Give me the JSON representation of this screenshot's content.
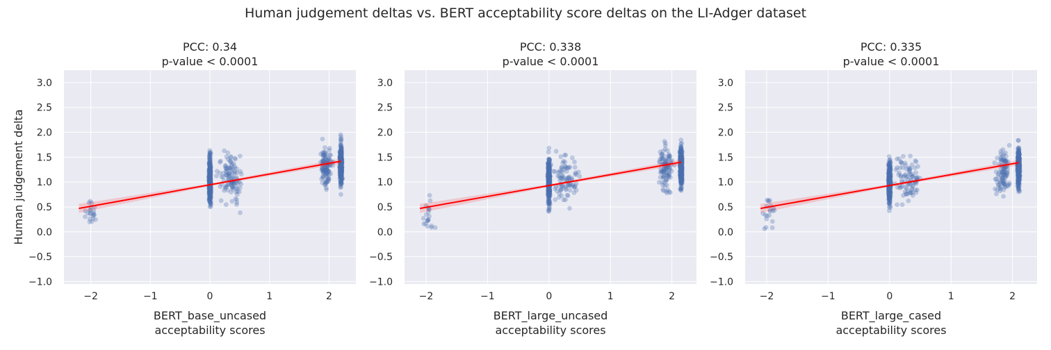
{
  "figure_title": "Human judgement deltas vs. BERT acceptability score deltas on the LI-Adger dataset",
  "colors": {
    "points": "#4c72b0",
    "fit_line": "#ff0000",
    "plot_background": "#eaeaf2",
    "grid": "#ffffff"
  },
  "chart_data": [
    {
      "type": "scatter",
      "title_line1": "PCC: 0.34",
      "title_line2": "p-value < 0.0001",
      "xlabel_line1": "BERT_base_uncased",
      "xlabel_line2": "acceptability scores",
      "ylabel": "Human judgement delta",
      "xlim": [
        -2.45,
        2.45
      ],
      "ylim": [
        -1.05,
        3.25
      ],
      "xticks": [
        -2,
        -1,
        0,
        1,
        2
      ],
      "xtick_labels": [
        "−2",
        "−1",
        "0",
        "1",
        "2"
      ],
      "yticks": [
        -1.0,
        -0.5,
        0.0,
        0.5,
        1.0,
        1.5,
        2.0,
        2.5,
        3.0
      ],
      "ytick_labels": [
        "−1.0",
        "−0.5",
        "0.0",
        "0.5",
        "1.0",
        "1.5",
        "2.0",
        "2.5",
        "3.0"
      ],
      "grid": true,
      "regression": {
        "x": [
          -2.2,
          2.2
        ],
        "y": [
          0.47,
          1.42
        ]
      },
      "clusters": [
        {
          "x": -2.0,
          "x_spread": 0.2,
          "y_center": 0.35,
          "y_spread": 0.55,
          "n": 22
        },
        {
          "x": 0.0,
          "x_spread": 0.035,
          "y_center": 1.05,
          "y_spread": 0.75,
          "n": 380
        },
        {
          "x": 0.35,
          "x_spread": 0.45,
          "y_center": 1.1,
          "y_spread": 0.8,
          "n": 110
        },
        {
          "x": 2.2,
          "x_spread": 0.035,
          "y_center": 1.35,
          "y_spread": 0.7,
          "n": 380
        },
        {
          "x": 1.95,
          "x_spread": 0.22,
          "y_center": 1.3,
          "y_spread": 0.75,
          "n": 110
        }
      ]
    },
    {
      "type": "scatter",
      "title_line1": "PCC: 0.338",
      "title_line2": "p-value < 0.0001",
      "xlabel_line1": "BERT_large_uncased",
      "xlabel_line2": "acceptability scores",
      "ylabel": "",
      "xlim": [
        -2.35,
        2.4
      ],
      "ylim": [
        -1.05,
        3.25
      ],
      "xticks": [
        -2,
        -1,
        0,
        1,
        2
      ],
      "xtick_labels": [
        "−2",
        "−1",
        "0",
        "1",
        "2"
      ],
      "yticks": [
        -1.0,
        -0.5,
        0.0,
        0.5,
        1.0,
        1.5,
        2.0,
        2.5,
        3.0
      ],
      "ytick_labels": [
        "−1.0",
        "−0.5",
        "0.0",
        "0.5",
        "1.0",
        "1.5",
        "2.0",
        "2.5",
        "3.0"
      ],
      "grid": true,
      "regression": {
        "x": [
          -2.1,
          2.15
        ],
        "y": [
          0.47,
          1.4
        ]
      },
      "clusters": [
        {
          "x": -1.95,
          "x_spread": 0.2,
          "y_center": 0.3,
          "y_spread": 0.6,
          "n": 20
        },
        {
          "x": 0.0,
          "x_spread": 0.035,
          "y_center": 1.0,
          "y_spread": 0.75,
          "n": 380
        },
        {
          "x": 0.3,
          "x_spread": 0.4,
          "y_center": 1.05,
          "y_spread": 0.8,
          "n": 90
        },
        {
          "x": 2.15,
          "x_spread": 0.035,
          "y_center": 1.3,
          "y_spread": 0.7,
          "n": 380
        },
        {
          "x": 1.9,
          "x_spread": 0.22,
          "y_center": 1.25,
          "y_spread": 0.75,
          "n": 100
        }
      ]
    },
    {
      "type": "scatter",
      "title_line1": "PCC: 0.335",
      "title_line2": "p-value < 0.0001",
      "xlabel_line1": "BERT_large_cased",
      "xlabel_line2": "acceptability scores",
      "ylabel": "",
      "xlim": [
        -2.35,
        2.4
      ],
      "ylim": [
        -1.05,
        3.25
      ],
      "xticks": [
        -2,
        -1,
        0,
        1,
        2
      ],
      "xtick_labels": [
        "−2",
        "−1",
        "0",
        "1",
        "2"
      ],
      "yticks": [
        -1.0,
        -0.5,
        0.0,
        0.5,
        1.0,
        1.5,
        2.0,
        2.5,
        3.0
      ],
      "ytick_labels": [
        "−1.0",
        "−0.5",
        "0.0",
        "0.5",
        "1.0",
        "1.5",
        "2.0",
        "2.5",
        "3.0"
      ],
      "grid": true,
      "regression": {
        "x": [
          -2.1,
          2.1
        ],
        "y": [
          0.47,
          1.39
        ]
      },
      "clusters": [
        {
          "x": -1.95,
          "x_spread": 0.2,
          "y_center": 0.35,
          "y_spread": 0.6,
          "n": 20
        },
        {
          "x": 0.0,
          "x_spread": 0.035,
          "y_center": 1.0,
          "y_spread": 0.75,
          "n": 380
        },
        {
          "x": 0.3,
          "x_spread": 0.4,
          "y_center": 1.05,
          "y_spread": 0.8,
          "n": 90
        },
        {
          "x": 2.1,
          "x_spread": 0.035,
          "y_center": 1.3,
          "y_spread": 0.7,
          "n": 380
        },
        {
          "x": 1.85,
          "x_spread": 0.22,
          "y_center": 1.2,
          "y_spread": 0.75,
          "n": 100
        }
      ]
    }
  ]
}
